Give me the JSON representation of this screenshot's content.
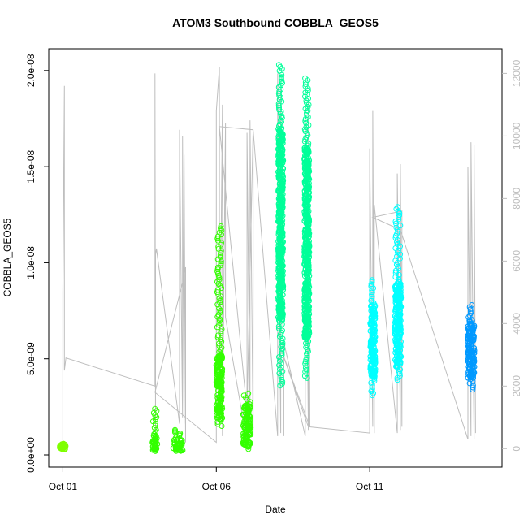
{
  "chart_data": {
    "type": "scatter",
    "title": "ATOM3 Southbound COBBLA_GEOS5",
    "xlabel": "Date",
    "ylabel": "COBBLA_GEOS5",
    "x_ticks": [
      "Oct 01",
      "Oct 06",
      "Oct 11"
    ],
    "x_tick_days": [
      1,
      6,
      11
    ],
    "xlim": [
      0.75,
      15.1
    ],
    "ylim": [
      0,
      2.05e-08
    ],
    "y_ticks": [
      0,
      5e-09,
      1e-08,
      1.5e-08,
      2e-08
    ],
    "y_tick_labels": [
      "0.0e+00",
      "5.0e-09",
      "1.0e-08",
      "1.5e-08",
      "2.0e-08"
    ],
    "y2lim": [
      -200,
      12400
    ],
    "y2_ticks": [
      0,
      2000,
      4000,
      6000,
      8000,
      10000,
      12000
    ],
    "y2_tick_labels": [
      "0",
      "2000",
      "4000",
      "6000",
      "8000",
      "10000",
      "12000"
    ],
    "grid": false,
    "series": [
      {
        "kind": "points",
        "color": "#7fff00",
        "clusters": [
          {
            "day": 1.0,
            "width": 0.2,
            "min": 2.8e-10,
            "max": 5.8e-10,
            "core": [
              2.8e-10,
              5.8e-10
            ]
          }
        ]
      },
      {
        "kind": "points",
        "color": "#33ff00",
        "clusters": [
          {
            "day": 4.0,
            "width": 0.14,
            "min": 2e-10,
            "max": 2.4e-09,
            "core": [
              2e-10,
              1e-09
            ]
          },
          {
            "day": 4.75,
            "width": 0.32,
            "min": 2e-10,
            "max": 1.3e-09,
            "core": [
              2e-10,
              8e-10
            ]
          },
          {
            "day": 6.1,
            "width": 0.2,
            "min": 1.5e-09,
            "max": 1.19e-08,
            "core": [
              1.8e-09,
              5.2e-09
            ]
          },
          {
            "day": 7.0,
            "width": 0.26,
            "min": 3e-10,
            "max": 3.2e-09,
            "core": [
              4e-10,
              2.6e-09
            ]
          }
        ]
      },
      {
        "kind": "points",
        "color": "#00ff99",
        "clusters": [
          {
            "day": 8.1,
            "width": 0.16,
            "min": 3.6e-09,
            "max": 2.03e-08,
            "core": [
              7e-09,
              1.7e-08
            ]
          },
          {
            "day": 8.95,
            "width": 0.16,
            "min": 4e-09,
            "max": 1.96e-08,
            "core": [
              6e-09,
              1.6e-08
            ]
          }
        ]
      },
      {
        "kind": "points",
        "color": "#00ffff",
        "clusters": [
          {
            "day": 11.1,
            "width": 0.16,
            "min": 3.1e-09,
            "max": 9.1e-09,
            "core": [
              4e-09,
              7.8e-09
            ]
          },
          {
            "day": 11.92,
            "width": 0.2,
            "min": 3.9e-09,
            "max": 1.29e-08,
            "core": [
              4.5e-09,
              9e-09
            ]
          }
        ]
      },
      {
        "kind": "points",
        "color": "#0099ff",
        "clusters": [
          {
            "day": 14.3,
            "width": 0.22,
            "min": 3.4e-09,
            "max": 7.8e-09,
            "core": [
              4e-09,
              7e-09
            ]
          }
        ]
      },
      {
        "kind": "line",
        "color": "#bebebe",
        "axis": "right",
        "name": "",
        "x": [
          1.0,
          1.0,
          1.05,
          1.05,
          1.1,
          4.0,
          4.0,
          4.02,
          4.02,
          4.05,
          4.8,
          4.8,
          4.9,
          4.9,
          4.95,
          4.95,
          5.0,
          5.0,
          4.95,
          4.0,
          6.0,
          6.0,
          6.1,
          6.1,
          6.2,
          6.2,
          6.3,
          6.3,
          7.0,
          7.0,
          7.1,
          7.1,
          7.2,
          7.2,
          7.0,
          6.1,
          7.2,
          8.0,
          8.0,
          8.1,
          8.1,
          8.2,
          8.2,
          8.9,
          8.9,
          9.0,
          9.0,
          9.05,
          8.1,
          9.0,
          11.0,
          11.0,
          11.1,
          11.1,
          11.15,
          11.15,
          11.9,
          11.9,
          12.0,
          12.0,
          12.05,
          12.05,
          11.1,
          12.0,
          14.2,
          14.2,
          14.3,
          14.3,
          14.4,
          14.4,
          14.45
        ],
        "y": [
          200,
          5000,
          11600,
          2500,
          2900,
          2000,
          12000,
          200,
          6200,
          6400,
          800,
          10200,
          1000,
          10000,
          800,
          9400,
          200,
          5800,
          5500,
          1800,
          200,
          10800,
          12200,
          800,
          11000,
          400,
          10400,
          4200,
          200,
          10100,
          400,
          10500,
          400,
          10200,
          1200,
          10300,
          10200,
          400,
          12000,
          500,
          11500,
          400,
          3400,
          400,
          10800,
          600,
          11200,
          700,
          3200,
          700,
          500,
          9600,
          700,
          10800,
          500,
          7800,
          500,
          8800,
          600,
          9100,
          700,
          7600,
          7400,
          7000,
          300,
          9000,
          400,
          9800,
          300,
          9700,
          500
        ]
      }
    ]
  }
}
